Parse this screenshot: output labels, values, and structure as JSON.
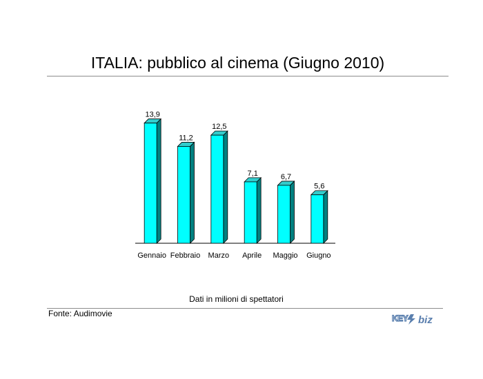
{
  "header": {
    "title": "ITALIA: pubblico al cinema (Giugno 2010)"
  },
  "footer": {
    "note": "Dati in milioni di spettatori",
    "source": "Fonte: Audimovie",
    "logo_text": "KEY4biz"
  },
  "colors": {
    "bar_front": "#00ffff",
    "bar_side": "#008080",
    "bar_top": "#33cccc"
  },
  "chart_data": {
    "type": "bar",
    "title": "ITALIA: pubblico al cinema (Giugno 2010)",
    "categories": [
      "Gennaio",
      "Febbraio",
      "Marzo",
      "Aprile",
      "Maggio",
      "Giugno"
    ],
    "values": [
      13.9,
      11.2,
      12.5,
      7.1,
      6.7,
      5.6
    ],
    "value_labels": [
      "13,9",
      "11,2",
      "12,5",
      "7,1",
      "6,7",
      "5,6"
    ],
    "xlabel": "",
    "ylabel": "",
    "ylim": [
      0,
      14
    ],
    "grid": false,
    "legend": "none"
  }
}
